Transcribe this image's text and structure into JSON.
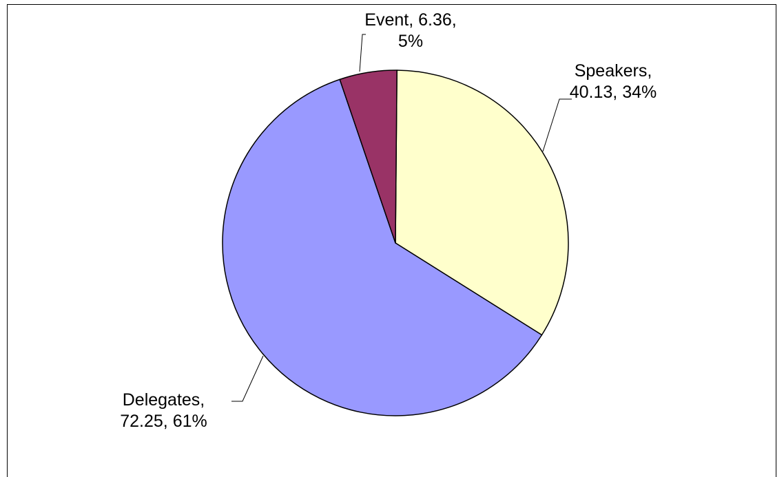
{
  "chart_data": {
    "type": "pie",
    "title": "",
    "slices": [
      {
        "label": "Speakers",
        "value": 40.13,
        "percent": "34%",
        "color": "#FFFFCC"
      },
      {
        "label": "Delegates",
        "value": 72.25,
        "percent": "61%",
        "color": "#9999FF"
      },
      {
        "label": "Event",
        "value": 6.36,
        "percent": "5%",
        "color": "#993366"
      }
    ],
    "data_labels": {
      "event": {
        "line1": "Event, 6.36,",
        "line2": "5%"
      },
      "speakers": {
        "line1": "Speakers,",
        "line2": "40.13, 34%"
      },
      "delegates": {
        "line1": "Delegates,",
        "line2": "72.25, 61%"
      }
    },
    "legend": "none",
    "grid": false
  }
}
